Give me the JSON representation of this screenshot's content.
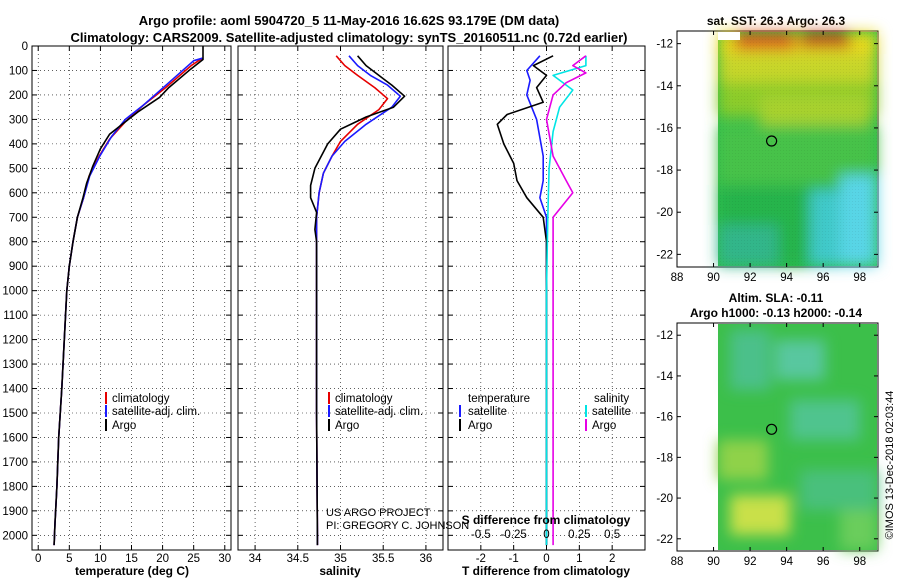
{
  "header": {
    "title_line1": "Argo profile: aoml 5904720_5 11-May-2016 16.62S 93.179E (DM data)",
    "title_line2": "Climatology: CARS2009. Satellite-adjusted climatology: synTS_20160511.nc (0.72d earlier)"
  },
  "colors": {
    "climatology": "#e60000",
    "satellite": "#1a1aff",
    "argo": "#000000",
    "sal_satellite": "#00e5e5",
    "sal_diff": "#e600e6"
  },
  "chart_data": [
    {
      "type": "line",
      "id": "temperature",
      "xlabel": "temperature (deg C)",
      "ylabel": "",
      "xlim": [
        -1,
        31
      ],
      "ylim": [
        0,
        2060
      ],
      "xticks": [
        "0",
        "5",
        "10",
        "15",
        "20",
        "25",
        "30"
      ],
      "xtick_values": [
        0,
        5,
        10,
        15,
        20,
        25,
        30
      ],
      "yticks": [
        "0",
        "100",
        "200",
        "300",
        "400",
        "500",
        "600",
        "700",
        "800",
        "900",
        "1000",
        "1100",
        "1200",
        "1300",
        "1400",
        "1500",
        "1600",
        "1700",
        "1800",
        "1900",
        "2000"
      ],
      "legend": [
        "climatology",
        "satellite-adj. clim.",
        "Argo"
      ],
      "series": [
        {
          "name": "climatology",
          "color_key": "climatology",
          "points": [
            [
              26.4,
              50
            ],
            [
              24.6,
              80
            ],
            [
              20.5,
              170
            ],
            [
              17,
              240
            ],
            [
              14,
              310
            ],
            [
              11.5,
              380
            ],
            [
              9.8,
              450
            ],
            [
              8.2,
              530
            ],
            [
              7.3,
              620
            ],
            [
              6.3,
              700
            ],
            [
              5.6,
              800
            ],
            [
              5.0,
              900
            ],
            [
              4.6,
              1000
            ],
            [
              4.2,
              1200
            ],
            [
              3.8,
              1400
            ],
            [
              3.3,
              1600
            ],
            [
              3.0,
              1800
            ],
            [
              2.7,
              1950
            ],
            [
              2.55,
              2040
            ]
          ]
        },
        {
          "name": "satellite-adj. clim.",
          "color_key": "satellite",
          "points": [
            [
              26.4,
              50
            ],
            [
              25,
              60
            ],
            [
              21,
              150
            ],
            [
              17,
              240
            ],
            [
              14,
              300
            ],
            [
              11.8,
              370
            ],
            [
              9.9,
              450
            ],
            [
              8.3,
              530
            ],
            [
              7.3,
              620
            ],
            [
              6.3,
              700
            ],
            [
              5.6,
              800
            ],
            [
              5.0,
              900
            ],
            [
              4.6,
              1000
            ],
            [
              4.2,
              1200
            ],
            [
              3.8,
              1400
            ],
            [
              3.3,
              1600
            ],
            [
              3.0,
              1800
            ],
            [
              2.7,
              1950
            ],
            [
              2.55,
              2040
            ]
          ]
        },
        {
          "name": "Argo",
          "color_key": "argo",
          "points": [
            [
              26.5,
              0
            ],
            [
              26.5,
              55
            ],
            [
              24.5,
              95
            ],
            [
              21,
              170
            ],
            [
              19.5,
              210
            ],
            [
              16,
              270
            ],
            [
              13.5,
              320
            ],
            [
              11.5,
              360
            ],
            [
              10,
              420
            ],
            [
              8.8,
              490
            ],
            [
              7.8,
              560
            ],
            [
              7.2,
              620
            ],
            [
              6.3,
              700
            ],
            [
              5.6,
              800
            ],
            [
              5.0,
              900
            ],
            [
              4.6,
              1000
            ],
            [
              4.2,
              1200
            ],
            [
              3.8,
              1400
            ],
            [
              3.3,
              1600
            ],
            [
              3.0,
              1800
            ],
            [
              2.7,
              1950
            ],
            [
              2.55,
              2040
            ]
          ]
        }
      ]
    },
    {
      "type": "line",
      "id": "salinity",
      "xlabel": "salinity",
      "xlim": [
        33.8,
        36.2
      ],
      "ylim": [
        0,
        2060
      ],
      "xticks": [
        "34",
        "34.5",
        "35",
        "35.5",
        "36"
      ],
      "xtick_values": [
        34,
        34.5,
        35,
        35.5,
        36
      ],
      "legend": [
        "climatology",
        "satellite-adj. clim.",
        "Argo"
      ],
      "series": [
        {
          "name": "climatology",
          "color_key": "climatology",
          "points": [
            [
              34.95,
              40
            ],
            [
              35.05,
              80
            ],
            [
              35.2,
              120
            ],
            [
              35.4,
              170
            ],
            [
              35.55,
              215
            ],
            [
              35.45,
              260
            ],
            [
              35.2,
              320
            ],
            [
              35.0,
              390
            ],
            [
              34.9,
              450
            ],
            [
              34.8,
              520
            ],
            [
              34.75,
              600
            ],
            [
              34.72,
              700
            ],
            [
              34.72,
              800
            ],
            [
              34.72,
              1000
            ],
            [
              34.72,
              1500
            ],
            [
              34.73,
              2000
            ],
            [
              34.73,
              2040
            ]
          ]
        },
        {
          "name": "satellite-adj. clim.",
          "color_key": "satellite",
          "points": [
            [
              35.1,
              40
            ],
            [
              35.2,
              80
            ],
            [
              35.35,
              120
            ],
            [
              35.55,
              160
            ],
            [
              35.7,
              205
            ],
            [
              35.6,
              250
            ],
            [
              35.3,
              320
            ],
            [
              35.05,
              390
            ],
            [
              34.9,
              450
            ],
            [
              34.8,
              520
            ],
            [
              34.75,
              600
            ],
            [
              34.72,
              700
            ],
            [
              34.72,
              800
            ],
            [
              34.72,
              1000
            ],
            [
              34.72,
              1500
            ],
            [
              34.73,
              2000
            ],
            [
              34.73,
              2040
            ]
          ]
        },
        {
          "name": "Argo",
          "color_key": "argo",
          "points": [
            [
              35.2,
              40
            ],
            [
              35.3,
              80
            ],
            [
              35.45,
              120
            ],
            [
              35.6,
              160
            ],
            [
              35.75,
              205
            ],
            [
              35.62,
              250
            ],
            [
              35.3,
              290
            ],
            [
              35.0,
              340
            ],
            [
              34.85,
              400
            ],
            [
              34.7,
              500
            ],
            [
              34.65,
              570
            ],
            [
              34.65,
              620
            ],
            [
              34.72,
              680
            ],
            [
              34.7,
              750
            ],
            [
              34.72,
              800
            ],
            [
              34.72,
              1000
            ],
            [
              34.72,
              1500
            ],
            [
              34.73,
              2000
            ],
            [
              34.73,
              2040
            ]
          ]
        }
      ]
    },
    {
      "type": "line",
      "id": "difference",
      "xlabel": "T difference from climatology",
      "xlabel_secondary": "S difference from climatology",
      "xlim": [
        -3,
        3
      ],
      "ylim": [
        0,
        2060
      ],
      "xticks": [
        "-2",
        "-1",
        "0",
        "1",
        "2"
      ],
      "xtick_values": [
        -2,
        -1,
        0,
        1,
        2
      ],
      "secondary_ticks": [
        "-0.5",
        "-0.25",
        "0",
        "0.25",
        "0.5"
      ],
      "secondary_tick_values": [
        -0.5,
        -0.25,
        0,
        0.25,
        0.5
      ],
      "legend": {
        "left_title": "temperature",
        "right_title": "salinity",
        "labels": [
          "satellite",
          "Argo",
          "satellite",
          "Argo"
        ]
      },
      "series": [
        {
          "name": "T satellite",
          "color_key": "satellite",
          "points": [
            [
              -0.2,
              40
            ],
            [
              -0.6,
              100
            ],
            [
              -0.5,
              140
            ],
            [
              -0.6,
              200
            ],
            [
              -0.3,
              300
            ],
            [
              -0.1,
              450
            ],
            [
              -0.1,
              550
            ],
            [
              -0.2,
              620
            ],
            [
              0,
              700
            ],
            [
              0,
              1000
            ],
            [
              0,
              1500
            ],
            [
              0,
              2040
            ]
          ]
        },
        {
          "name": "T Argo",
          "color_key": "argo",
          "points": [
            [
              0.2,
              40
            ],
            [
              -0.4,
              80
            ],
            [
              0,
              120
            ],
            [
              -0.3,
              170
            ],
            [
              -0.1,
              230
            ],
            [
              -1.2,
              280
            ],
            [
              -1.5,
              320
            ],
            [
              -1.3,
              400
            ],
            [
              -1.0,
              480
            ],
            [
              -0.9,
              550
            ],
            [
              -0.6,
              620
            ],
            [
              -0.1,
              700
            ],
            [
              0,
              800
            ],
            [
              0,
              1000
            ],
            [
              0,
              1500
            ],
            [
              0,
              2040
            ]
          ]
        },
        {
          "name": "S satellite",
          "color_key": "sal_satellite",
          "points": [
            [
              0.3,
              40
            ],
            [
              0.3,
              80
            ],
            [
              0.05,
              120
            ],
            [
              0.2,
              180
            ],
            [
              0.1,
              250
            ],
            [
              0.05,
              350
            ],
            [
              0.02,
              500
            ],
            [
              0.01,
              700
            ],
            [
              0,
              1000
            ],
            [
              0,
              1500
            ],
            [
              0,
              2040
            ]
          ]
        },
        {
          "name": "S Argo",
          "color_key": "sal_diff",
          "points": [
            [
              0.3,
              40
            ],
            [
              0.2,
              80
            ],
            [
              0.3,
              110
            ],
            [
              0.15,
              150
            ],
            [
              0.05,
              200
            ],
            [
              0.0,
              300
            ],
            [
              0.05,
              450
            ],
            [
              0.15,
              550
            ],
            [
              0.2,
              600
            ],
            [
              0.05,
              700
            ],
            [
              0.05,
              1000
            ],
            [
              0.05,
              1500
            ],
            [
              0.05,
              2040
            ]
          ]
        }
      ]
    },
    {
      "type": "heatmap",
      "id": "sst-map",
      "title": "sat. SST: 26.3 Argo: 26.3",
      "xlim": [
        88,
        99
      ],
      "ylim": [
        -22.6,
        -11.4
      ],
      "xticks": [
        "88",
        "90",
        "92",
        "94",
        "96",
        "98"
      ],
      "xtick_values": [
        88,
        90,
        92,
        94,
        96,
        98
      ],
      "yticks": [
        "-12",
        "-14",
        "-16",
        "-18",
        "-20",
        "-22"
      ],
      "ytick_values": [
        -12,
        -14,
        -16,
        -18,
        -20,
        -22
      ],
      "data_extent": [
        90,
        99,
        -22.6,
        -11.4
      ],
      "marker": [
        93.179,
        -16.62
      ]
    },
    {
      "type": "heatmap",
      "id": "sla-map",
      "title_line1": "Altim. SLA: -0.11",
      "title_line2": "Argo h1000: -0.13 h2000: -0.14",
      "xlim": [
        88,
        99
      ],
      "ylim": [
        -22.6,
        -11.4
      ],
      "xticks": [
        "88",
        "90",
        "92",
        "94",
        "96",
        "98"
      ],
      "xtick_values": [
        88,
        90,
        92,
        94,
        96,
        98
      ],
      "yticks": [
        "-12",
        "-14",
        "-16",
        "-18",
        "-20",
        "-22"
      ],
      "ytick_values": [
        -12,
        -14,
        -16,
        -18,
        -20,
        -22
      ],
      "data_extent": [
        90,
        99,
        -22.6,
        -11.4
      ],
      "marker": [
        93.179,
        -16.62
      ]
    }
  ],
  "credits": {
    "project": "US ARGO PROJECT",
    "pi": "PI: GREGORY C. JOHNSON",
    "imos": "©IMOS 13-Dec-2018 02:03:44"
  }
}
